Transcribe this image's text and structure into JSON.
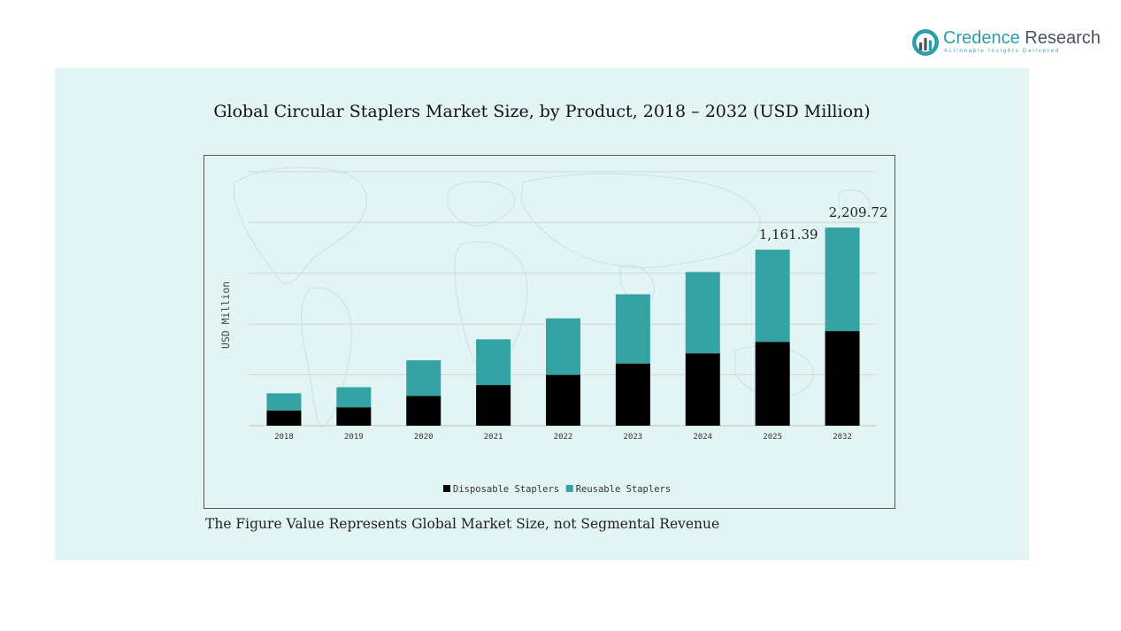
{
  "logo": {
    "name_part1": "Credence",
    "name_part2": "Research",
    "tagline": "Actionable Insights Delivered",
    "colors": {
      "teal": "#2a9fa7",
      "dark": "#4b5260"
    }
  },
  "footnote": "The Figure Value Represents Global Market Size, not Segmental Revenue",
  "colors": {
    "panel_background": "#e3f4f4",
    "disposable": "#000000",
    "reusable": "#35a3a3"
  },
  "chart_data": {
    "type": "bar",
    "stacked": true,
    "title": "Global Circular Staplers Market Size, by Product, 2018 – 2032 (USD Million)",
    "ylabel": "USD Million",
    "xlabel": "",
    "categories": [
      "2018",
      "2019",
      "2020",
      "2021",
      "2022",
      "2023",
      "2024",
      "2025",
      "2032"
    ],
    "series": [
      {
        "name": "Disposable Staplers",
        "color": "#000000",
        "values": [
          120,
          145,
          235,
          320,
          400,
          490,
          570,
          660,
          745
        ]
      },
      {
        "name": "Reusable Staplers",
        "color": "#35a3a3",
        "values": [
          135,
          158,
          280,
          360,
          445,
          545,
          640,
          726,
          815
        ]
      }
    ],
    "annotations": [
      {
        "category": "2025",
        "label": "1,161.39"
      },
      {
        "category": "2032",
        "label": "2,209.72"
      }
    ],
    "ylim": [
      0,
      2000
    ],
    "y_tick_labels_visible": false,
    "grid": true,
    "legend_position": "bottom"
  }
}
